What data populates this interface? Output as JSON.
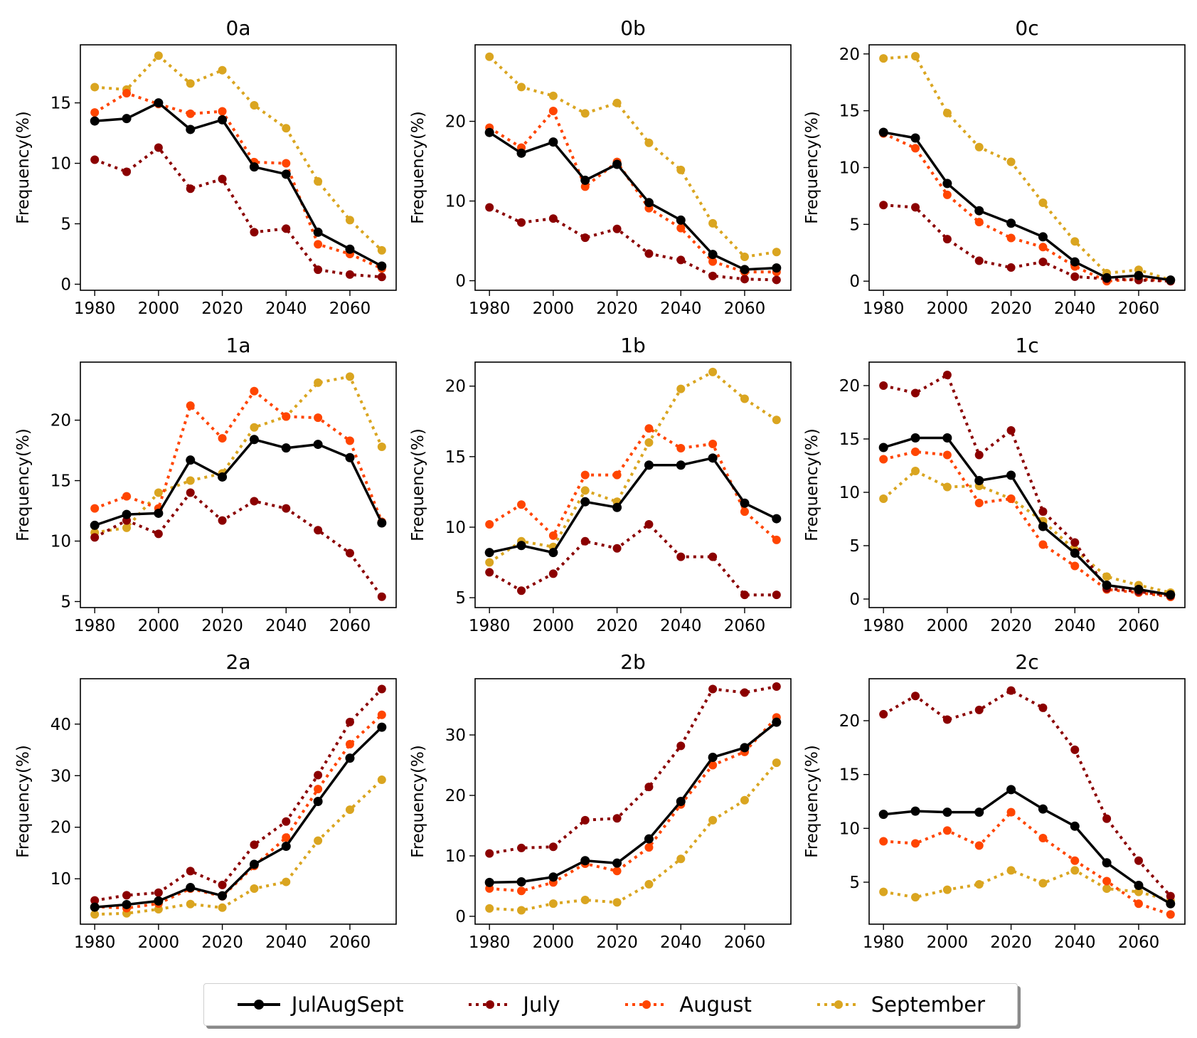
{
  "chart_data": [
    {
      "type": "line",
      "title": "0a",
      "ylabel": "Frequency(%)",
      "xlabel": "",
      "ylim": [
        -0.5,
        19.8
      ],
      "yticks": [
        0,
        5,
        10,
        15
      ],
      "x": [
        1980,
        1990,
        2000,
        2010,
        2020,
        2030,
        2040,
        2050,
        2060,
        2070
      ],
      "xticks": [
        1980,
        2000,
        2020,
        2040,
        2060
      ],
      "series": [
        {
          "name": "JulAugSept",
          "values": [
            13.5,
            13.7,
            15.0,
            12.8,
            13.6,
            9.7,
            9.1,
            4.3,
            2.9,
            1.5
          ]
        },
        {
          "name": "July",
          "values": [
            10.3,
            9.3,
            11.3,
            7.9,
            8.7,
            4.3,
            4.6,
            1.2,
            0.8,
            0.6
          ]
        },
        {
          "name": "August",
          "values": [
            14.2,
            15.8,
            14.9,
            14.1,
            14.3,
            10.1,
            10.0,
            3.3,
            2.5,
            1.3
          ]
        },
        {
          "name": "September",
          "values": [
            16.3,
            16.1,
            18.9,
            16.6,
            17.7,
            14.8,
            12.9,
            8.5,
            5.3,
            2.8
          ]
        }
      ]
    },
    {
      "type": "line",
      "title": "0b",
      "ylabel": "Frequency(%)",
      "xlabel": "",
      "ylim": [
        -1.2,
        29.6
      ],
      "yticks": [
        0,
        10,
        20
      ],
      "x": [
        1980,
        1990,
        2000,
        2010,
        2020,
        2030,
        2040,
        2050,
        2060,
        2070
      ],
      "xticks": [
        1980,
        2000,
        2020,
        2040,
        2060
      ],
      "series": [
        {
          "name": "JulAugSept",
          "values": [
            18.6,
            16.0,
            17.4,
            12.6,
            14.6,
            9.8,
            7.6,
            3.3,
            1.4,
            1.6
          ]
        },
        {
          "name": "July",
          "values": [
            9.2,
            7.3,
            7.8,
            5.4,
            6.5,
            3.4,
            2.6,
            0.6,
            0.2,
            0.1
          ]
        },
        {
          "name": "August",
          "values": [
            19.2,
            16.7,
            21.3,
            11.8,
            14.9,
            9.1,
            6.6,
            2.4,
            1.1,
            1.1
          ]
        },
        {
          "name": "September",
          "values": [
            28.1,
            24.3,
            23.2,
            21.0,
            22.3,
            17.3,
            13.9,
            7.2,
            3.0,
            3.6
          ]
        }
      ]
    },
    {
      "type": "line",
      "title": "0c",
      "ylabel": "Frequency(%)",
      "xlabel": "",
      "ylim": [
        -0.8,
        20.8
      ],
      "yticks": [
        0,
        5,
        10,
        15,
        20
      ],
      "x": [
        1980,
        1990,
        2000,
        2010,
        2020,
        2030,
        2040,
        2050,
        2060,
        2070
      ],
      "xticks": [
        1980,
        2000,
        2020,
        2040,
        2060
      ],
      "series": [
        {
          "name": "JulAugSept",
          "values": [
            13.1,
            12.6,
            8.6,
            6.2,
            5.1,
            3.9,
            1.7,
            0.3,
            0.5,
            0.1
          ]
        },
        {
          "name": "July",
          "values": [
            6.7,
            6.5,
            3.7,
            1.8,
            1.2,
            1.7,
            0.4,
            0.2,
            0.1,
            0.0
          ]
        },
        {
          "name": "August",
          "values": [
            13.0,
            11.7,
            7.6,
            5.2,
            3.8,
            3.0,
            1.3,
            0.0,
            0.2,
            0.0
          ]
        },
        {
          "name": "September",
          "values": [
            19.6,
            19.8,
            14.8,
            11.8,
            10.5,
            6.9,
            3.5,
            0.7,
            1.0,
            0.1
          ]
        }
      ]
    },
    {
      "type": "line",
      "title": "1a",
      "ylabel": "Frequency(%)",
      "xlabel": "",
      "ylim": [
        4.5,
        24.8
      ],
      "yticks": [
        5,
        10,
        15,
        20
      ],
      "x": [
        1980,
        1990,
        2000,
        2010,
        2020,
        2030,
        2040,
        2050,
        2060,
        2070
      ],
      "xticks": [
        1980,
        2000,
        2020,
        2040,
        2060
      ],
      "series": [
        {
          "name": "JulAugSept",
          "values": [
            11.3,
            12.2,
            12.3,
            16.7,
            15.3,
            18.4,
            17.7,
            18.0,
            16.9,
            11.5
          ]
        },
        {
          "name": "July",
          "values": [
            10.3,
            11.7,
            10.6,
            14.0,
            11.7,
            13.3,
            12.7,
            10.9,
            9.0,
            5.4
          ]
        },
        {
          "name": "August",
          "values": [
            12.7,
            13.7,
            12.7,
            21.2,
            18.5,
            22.4,
            20.3,
            20.2,
            18.3,
            11.6
          ]
        },
        {
          "name": "September",
          "values": [
            10.7,
            11.1,
            14.0,
            15.0,
            15.6,
            19.4,
            20.3,
            23.1,
            23.6,
            17.8
          ]
        }
      ]
    },
    {
      "type": "line",
      "title": "1b",
      "ylabel": "Frequency(%)",
      "xlabel": "",
      "ylim": [
        4.3,
        21.7
      ],
      "yticks": [
        5,
        10,
        15,
        20
      ],
      "x": [
        1980,
        1990,
        2000,
        2010,
        2020,
        2030,
        2040,
        2050,
        2060,
        2070
      ],
      "xticks": [
        1980,
        2000,
        2020,
        2040,
        2060
      ],
      "series": [
        {
          "name": "JulAugSept",
          "values": [
            8.2,
            8.7,
            8.2,
            11.8,
            11.4,
            14.4,
            14.4,
            14.9,
            11.7,
            10.6
          ]
        },
        {
          "name": "July",
          "values": [
            6.8,
            5.5,
            6.7,
            9.0,
            8.5,
            10.2,
            7.9,
            7.9,
            5.2,
            5.2
          ]
        },
        {
          "name": "August",
          "values": [
            10.2,
            11.6,
            9.4,
            13.7,
            13.7,
            17.0,
            15.6,
            15.9,
            11.1,
            9.1
          ]
        },
        {
          "name": "September",
          "values": [
            7.5,
            9.0,
            8.6,
            12.6,
            11.8,
            16.0,
            19.8,
            21.0,
            19.1,
            17.6
          ]
        }
      ]
    },
    {
      "type": "line",
      "title": "1c",
      "ylabel": "Frequency(%)",
      "xlabel": "",
      "ylim": [
        -0.8,
        22.2
      ],
      "yticks": [
        0,
        5,
        10,
        15,
        20
      ],
      "x": [
        1980,
        1990,
        2000,
        2010,
        2020,
        2030,
        2040,
        2050,
        2060,
        2070
      ],
      "xticks": [
        1980,
        2000,
        2020,
        2040,
        2060
      ],
      "series": [
        {
          "name": "JulAugSept",
          "values": [
            14.2,
            15.1,
            15.1,
            11.1,
            11.6,
            6.8,
            4.3,
            1.3,
            0.9,
            0.4
          ]
        },
        {
          "name": "July",
          "values": [
            20.0,
            19.3,
            21.0,
            13.5,
            15.8,
            8.2,
            5.3,
            1.0,
            0.7,
            0.3
          ]
        },
        {
          "name": "August",
          "values": [
            13.1,
            13.8,
            13.5,
            9.0,
            9.4,
            5.1,
            3.1,
            0.9,
            0.6,
            0.2
          ]
        },
        {
          "name": "September",
          "values": [
            9.4,
            12.0,
            10.5,
            10.6,
            9.4,
            7.3,
            4.6,
            2.1,
            1.3,
            0.6
          ]
        }
      ]
    },
    {
      "type": "line",
      "title": "2a",
      "ylabel": "Frequency(%)",
      "xlabel": "",
      "ylim": [
        1.2,
        48.8
      ],
      "yticks": [
        10,
        20,
        30,
        40
      ],
      "x": [
        1980,
        1990,
        2000,
        2010,
        2020,
        2030,
        2040,
        2050,
        2060,
        2070
      ],
      "xticks": [
        1980,
        2000,
        2020,
        2040,
        2060
      ],
      "series": [
        {
          "name": "JulAugSept",
          "values": [
            4.5,
            5.0,
            5.7,
            8.3,
            6.7,
            12.8,
            16.3,
            25.0,
            33.4,
            39.4
          ]
        },
        {
          "name": "July",
          "values": [
            5.8,
            6.8,
            7.3,
            11.5,
            8.8,
            16.6,
            21.1,
            30.1,
            40.4,
            46.8
          ]
        },
        {
          "name": "August",
          "values": [
            4.6,
            4.3,
            5.2,
            8.1,
            6.6,
            12.5,
            18.0,
            27.4,
            36.1,
            41.8
          ]
        },
        {
          "name": "September",
          "values": [
            3.1,
            3.3,
            4.1,
            5.1,
            4.4,
            8.1,
            9.4,
            17.4,
            23.4,
            29.2
          ]
        }
      ]
    },
    {
      "type": "line",
      "title": "2b",
      "ylabel": "Frequency(%)",
      "xlabel": "",
      "ylim": [
        -1.3,
        39.3
      ],
      "yticks": [
        0,
        10,
        20,
        30
      ],
      "x": [
        1980,
        1990,
        2000,
        2010,
        2020,
        2030,
        2040,
        2050,
        2060,
        2070
      ],
      "xticks": [
        1980,
        2000,
        2020,
        2040,
        2060
      ],
      "series": [
        {
          "name": "JulAugSept",
          "values": [
            5.6,
            5.7,
            6.5,
            9.2,
            8.8,
            12.8,
            19.0,
            26.3,
            27.9,
            32.1
          ]
        },
        {
          "name": "July",
          "values": [
            10.4,
            11.3,
            11.5,
            15.9,
            16.2,
            21.4,
            28.2,
            37.6,
            37.0,
            38.0
          ]
        },
        {
          "name": "August",
          "values": [
            4.6,
            4.2,
            5.6,
            8.7,
            7.5,
            11.4,
            18.5,
            25.0,
            27.2,
            32.9
          ]
        },
        {
          "name": "September",
          "values": [
            1.3,
            1.0,
            2.1,
            2.7,
            2.3,
            5.3,
            9.5,
            15.9,
            19.2,
            25.4
          ]
        }
      ]
    },
    {
      "type": "line",
      "title": "2c",
      "ylabel": "Frequency(%)",
      "xlabel": "",
      "ylim": [
        1.1,
        23.9
      ],
      "yticks": [
        5,
        10,
        15,
        20
      ],
      "x": [
        1980,
        1990,
        2000,
        2010,
        2020,
        2030,
        2040,
        2050,
        2060,
        2070
      ],
      "xticks": [
        1980,
        2000,
        2020,
        2040,
        2060
      ],
      "series": [
        {
          "name": "JulAugSept",
          "values": [
            11.3,
            11.6,
            11.5,
            11.5,
            13.6,
            11.8,
            10.2,
            6.8,
            4.7,
            3.0
          ]
        },
        {
          "name": "July",
          "values": [
            20.6,
            22.3,
            20.1,
            21.0,
            22.8,
            21.2,
            17.3,
            10.9,
            7.0,
            3.7
          ]
        },
        {
          "name": "August",
          "values": [
            8.8,
            8.6,
            9.8,
            8.4,
            11.5,
            9.1,
            7.0,
            5.1,
            3.0,
            2.0
          ]
        },
        {
          "name": "September",
          "values": [
            4.1,
            3.6,
            4.3,
            4.8,
            6.1,
            4.9,
            6.1,
            4.4,
            4.1,
            3.3
          ]
        }
      ]
    }
  ],
  "legend": {
    "location": "bottom-center",
    "items": [
      {
        "label": "JulAugSept",
        "color": "#000000",
        "linestyle": "solid"
      },
      {
        "label": "July",
        "color": "#8B0000",
        "linestyle": "dotted"
      },
      {
        "label": "August",
        "color": "#FF4500",
        "linestyle": "dotted"
      },
      {
        "label": "September",
        "color": "#DAA520",
        "linestyle": "dotted"
      }
    ]
  },
  "series_colors": {
    "JulAugSept": "#000000",
    "July": "#8B0000",
    "August": "#FF4500",
    "September": "#DAA520"
  }
}
